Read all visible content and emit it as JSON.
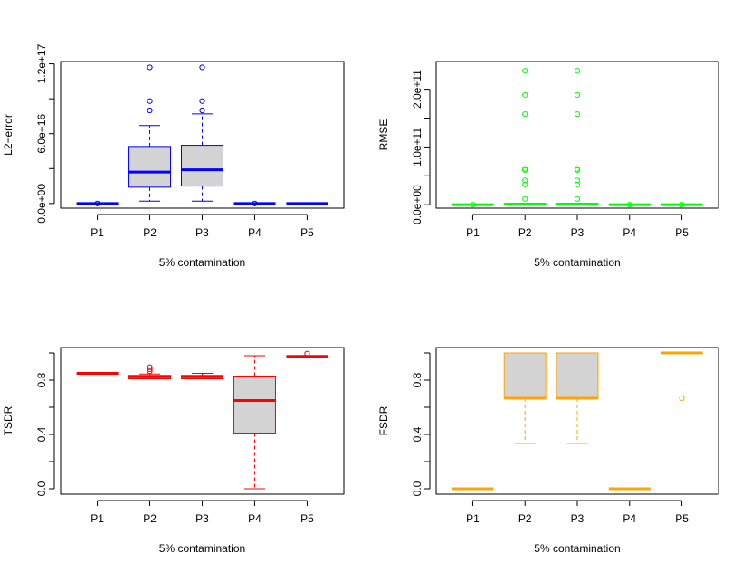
{
  "chart_data": [
    {
      "type": "boxplot",
      "xlabel": "5% contamination",
      "ylabel": "L2−error",
      "color": "#0000ff",
      "categories": [
        "P1",
        "P2",
        "P3",
        "P4",
        "P5"
      ],
      "ylim": [
        -4000000000000000.0,
        1.22e+17
      ],
      "yticks": [
        0,
        3e+16,
        6e+16,
        9e+16,
        1.2e+17
      ],
      "ytick_labels": [
        "0.0e+00",
        "",
        "6.0e+16",
        "",
        "1.2e+17"
      ],
      "boxes": [
        {
          "label": "P1",
          "min": 0,
          "q1": 0,
          "median": 0,
          "q3": 0,
          "max": 0,
          "outliers": [
            0
          ]
        },
        {
          "label": "P2",
          "min": 2000000000000000.0,
          "q1": 1.4e+16,
          "median": 2.7e+16,
          "q3": 4.9e+16,
          "max": 6.7e+16,
          "outliers": [
            8e+16,
            8.8e+16,
            1.17e+17
          ]
        },
        {
          "label": "P3",
          "min": 2000000000000000.0,
          "q1": 1.5e+16,
          "median": 2.9e+16,
          "q3": 5e+16,
          "max": 7.7e+16,
          "outliers": [
            8e+16,
            8.8e+16,
            1.17e+17
          ]
        },
        {
          "label": "P4",
          "min": 0,
          "q1": 0,
          "median": 0,
          "q3": 0,
          "max": 0,
          "outliers": [
            0
          ]
        },
        {
          "label": "P5",
          "min": 0,
          "q1": 0,
          "median": 0,
          "q3": 0,
          "max": 0,
          "outliers": []
        }
      ]
    },
    {
      "type": "boxplot",
      "xlabel": "5% contamination",
      "ylabel": "RMSE",
      "color": "#00ff00",
      "categories": [
        "P1",
        "P2",
        "P3",
        "P4",
        "P5"
      ],
      "ylim": [
        -6000000000.0,
        248000000000.0
      ],
      "yticks": [
        0,
        50000000000.0,
        100000000000.0,
        150000000000.0,
        200000000000.0
      ],
      "ytick_labels": [
        "0.0e+00",
        "",
        "1.0e+11",
        "",
        "2.0e+11"
      ],
      "boxes": [
        {
          "label": "P1",
          "min": 0,
          "q1": 0,
          "median": 0,
          "q3": 0,
          "max": 0,
          "outliers": [
            0
          ]
        },
        {
          "label": "P2",
          "min": 500000000.0,
          "q1": 500000000.0,
          "median": 1000000000.0,
          "q3": 1500000000.0,
          "max": 1500000000.0,
          "outliers": [
            10000000000.0,
            35000000000.0,
            42000000000.0,
            60000000000.0,
            62000000000.0,
            157000000000.0,
            190000000000.0,
            232000000000.0
          ]
        },
        {
          "label": "P3",
          "min": 500000000.0,
          "q1": 500000000.0,
          "median": 1000000000.0,
          "q3": 1500000000.0,
          "max": 1500000000.0,
          "outliers": [
            10000000000.0,
            35000000000.0,
            42000000000.0,
            60000000000.0,
            62000000000.0,
            157000000000.0,
            190000000000.0,
            232000000000.0
          ]
        },
        {
          "label": "P4",
          "min": 0,
          "q1": 0,
          "median": 0,
          "q3": 0,
          "max": 0,
          "outliers": [
            0
          ]
        },
        {
          "label": "P5",
          "min": 0,
          "q1": 0,
          "median": 0,
          "q3": 0,
          "max": 0,
          "outliers": [
            0
          ]
        }
      ]
    },
    {
      "type": "boxplot",
      "xlabel": "5% contamination",
      "ylabel": "TSDR",
      "color": "#ff0000",
      "categories": [
        "P1",
        "P2",
        "P3",
        "P4",
        "P5"
      ],
      "ylim": [
        -0.04,
        1.04
      ],
      "yticks": [
        0,
        0.2,
        0.4,
        0.6,
        0.8,
        1.0
      ],
      "ytick_labels": [
        "0.0",
        "",
        "0.4",
        "",
        "0.8",
        ""
      ],
      "boxes": [
        {
          "label": "P1",
          "min": 0.85,
          "q1": 0.85,
          "median": 0.85,
          "q3": 0.85,
          "max": 0.85,
          "outliers": []
        },
        {
          "label": "P2",
          "min": 0.81,
          "q1": 0.81,
          "median": 0.825,
          "q3": 0.835,
          "max": 0.845,
          "outliers": [
            0.865,
            0.88,
            0.895
          ]
        },
        {
          "label": "P3",
          "min": 0.81,
          "q1": 0.81,
          "median": 0.825,
          "q3": 0.835,
          "max": 0.85,
          "outliers": []
        },
        {
          "label": "P4",
          "min": 0.0,
          "q1": 0.41,
          "median": 0.65,
          "q3": 0.83,
          "max": 0.98,
          "outliers": []
        },
        {
          "label": "P5",
          "min": 0.975,
          "q1": 0.975,
          "median": 0.975,
          "q3": 0.975,
          "max": 0.975,
          "outliers": [
            0.995
          ]
        }
      ]
    },
    {
      "type": "boxplot",
      "xlabel": "5% contamination",
      "ylabel": "FSDR",
      "color": "#ffa500",
      "categories": [
        "P1",
        "P2",
        "P3",
        "P4",
        "P5"
      ],
      "ylim": [
        -0.04,
        1.04
      ],
      "yticks": [
        0,
        0.2,
        0.4,
        0.6,
        0.8,
        1.0
      ],
      "ytick_labels": [
        "0.0",
        "",
        "0.4",
        "",
        "0.8",
        ""
      ],
      "boxes": [
        {
          "label": "P1",
          "min": 0,
          "q1": 0,
          "median": 0,
          "q3": 0,
          "max": 0,
          "outliers": []
        },
        {
          "label": "P2",
          "min": 0.333,
          "q1": 0.667,
          "median": 0.667,
          "q3": 1.0,
          "max": 1.0,
          "outliers": []
        },
        {
          "label": "P3",
          "min": 0.333,
          "q1": 0.667,
          "median": 0.667,
          "q3": 1.0,
          "max": 1.0,
          "outliers": []
        },
        {
          "label": "P4",
          "min": 0,
          "q1": 0,
          "median": 0,
          "q3": 0,
          "max": 0,
          "outliers": []
        },
        {
          "label": "P5",
          "min": 1.0,
          "q1": 1.0,
          "median": 1.0,
          "q3": 1.0,
          "max": 1.0,
          "outliers": [
            0.667
          ]
        }
      ]
    }
  ]
}
